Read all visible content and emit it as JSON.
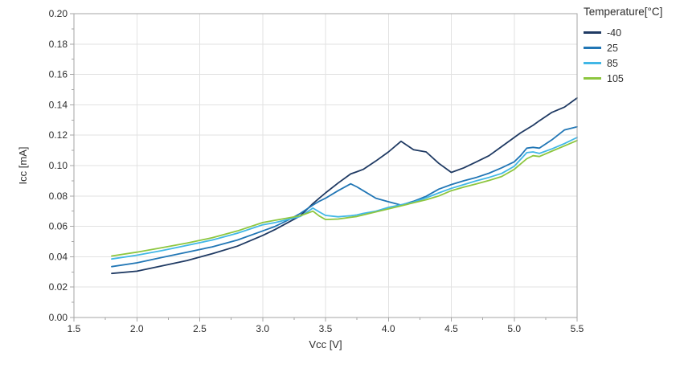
{
  "colors": {
    "background": "#ffffff",
    "grid": "#e2e2e2",
    "border": "#a6a6a6",
    "tick": "#a6a6a6",
    "text": "#2d2d2d"
  },
  "chart_data": {
    "type": "line",
    "title": "",
    "xlabel": "Vcc [V]",
    "ylabel": "Icc [mA]",
    "legend_title": "Temperature[°C]",
    "legend_position": "outside-top-right",
    "grid": true,
    "xlim": [
      1.5,
      5.5
    ],
    "ylim": [
      0.0,
      0.2
    ],
    "x_major_step": 0.5,
    "x_minor_step": 0.25,
    "y_major_step": 0.02,
    "y_minor_step": 0.01,
    "x_tick_decimals": 1,
    "y_tick_decimals": 2,
    "x": [
      1.8,
      2.0,
      2.2,
      2.4,
      2.6,
      2.8,
      3.0,
      3.1,
      3.2,
      3.3,
      3.4,
      3.45,
      3.5,
      3.6,
      3.7,
      3.75,
      3.8,
      3.9,
      4.0,
      4.1,
      4.2,
      4.3,
      4.4,
      4.5,
      4.6,
      4.7,
      4.8,
      4.9,
      5.0,
      5.05,
      5.1,
      5.15,
      5.2,
      5.3,
      5.4,
      5.5
    ],
    "series": [
      {
        "name": "-40",
        "color": "#1f3a63",
        "values": [
          0.029,
          0.0305,
          0.034,
          0.0375,
          0.042,
          0.047,
          0.054,
          0.058,
          0.0625,
          0.067,
          0.075,
          0.0785,
          0.082,
          0.0885,
          0.0945,
          0.096,
          0.0975,
          0.103,
          0.109,
          0.116,
          0.1105,
          0.109,
          0.1015,
          0.0955,
          0.0985,
          0.1025,
          0.1065,
          0.1125,
          0.1185,
          0.1215,
          0.124,
          0.1265,
          0.1295,
          0.135,
          0.1385,
          0.1445
        ]
      },
      {
        "name": "25",
        "color": "#2176b5",
        "values": [
          0.0335,
          0.036,
          0.0395,
          0.043,
          0.0465,
          0.051,
          0.057,
          0.06,
          0.064,
          0.0685,
          0.074,
          0.0765,
          0.0785,
          0.0835,
          0.088,
          0.086,
          0.0835,
          0.0785,
          0.0762,
          0.074,
          0.0765,
          0.0798,
          0.0845,
          0.0875,
          0.09,
          0.0922,
          0.095,
          0.0985,
          0.1025,
          0.1065,
          0.1115,
          0.112,
          0.1115,
          0.117,
          0.1235,
          0.1255
        ]
      },
      {
        "name": "85",
        "color": "#41b7e6",
        "values": [
          0.0385,
          0.041,
          0.044,
          0.0475,
          0.051,
          0.0555,
          0.061,
          0.0625,
          0.0645,
          0.0665,
          0.072,
          0.0695,
          0.0672,
          0.0663,
          0.067,
          0.0675,
          0.0685,
          0.07,
          0.0725,
          0.0742,
          0.076,
          0.0788,
          0.082,
          0.085,
          0.0875,
          0.09,
          0.0922,
          0.0948,
          0.0995,
          0.104,
          0.1085,
          0.109,
          0.108,
          0.111,
          0.1145,
          0.1185
        ]
      },
      {
        "name": "105",
        "color": "#8dc63f",
        "values": [
          0.0405,
          0.043,
          0.046,
          0.049,
          0.0525,
          0.057,
          0.0625,
          0.064,
          0.0655,
          0.067,
          0.07,
          0.0668,
          0.0645,
          0.0648,
          0.066,
          0.0665,
          0.0675,
          0.0695,
          0.0715,
          0.0735,
          0.0755,
          0.0775,
          0.08,
          0.0835,
          0.0858,
          0.088,
          0.0902,
          0.0928,
          0.0975,
          0.101,
          0.1045,
          0.1065,
          0.106,
          0.1095,
          0.113,
          0.1165
        ]
      }
    ]
  }
}
